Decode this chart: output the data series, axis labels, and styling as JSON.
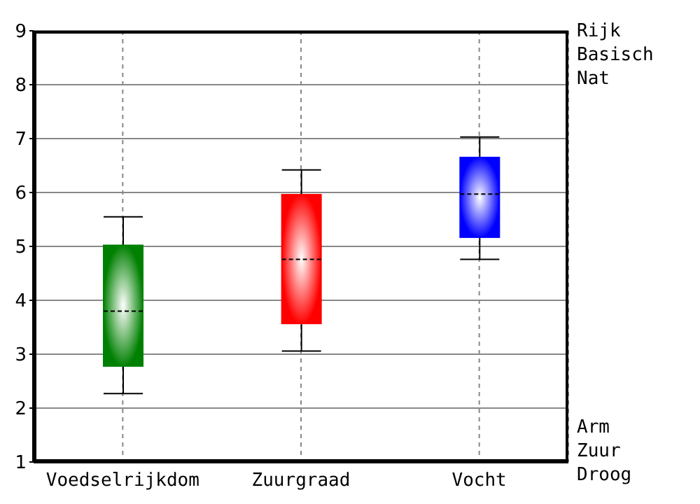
{
  "chart_data": {
    "type": "box",
    "categories": [
      "Voedselrijkdom",
      "Zuurgraad",
      "Vocht"
    ],
    "boxes": [
      {
        "low": 2.27,
        "q1": 2.78,
        "median": 3.8,
        "q3": 5.02,
        "high": 5.55
      },
      {
        "low": 3.06,
        "q1": 3.57,
        "median": 4.76,
        "q3": 5.96,
        "high": 6.42
      },
      {
        "low": 4.76,
        "q1": 5.17,
        "median": 5.97,
        "q3": 6.65,
        "high": 7.03
      }
    ],
    "colors": [
      "#008000",
      "#ff0000",
      "#0000ff"
    ],
    "ylim": [
      1,
      9
    ],
    "yticks": [
      1,
      2,
      3,
      4,
      5,
      6,
      7,
      8,
      9
    ],
    "grid": true,
    "annotations": [
      "Rijk",
      "Basisch",
      "Nat",
      "Arm",
      "Zuur",
      "Droog"
    ]
  }
}
